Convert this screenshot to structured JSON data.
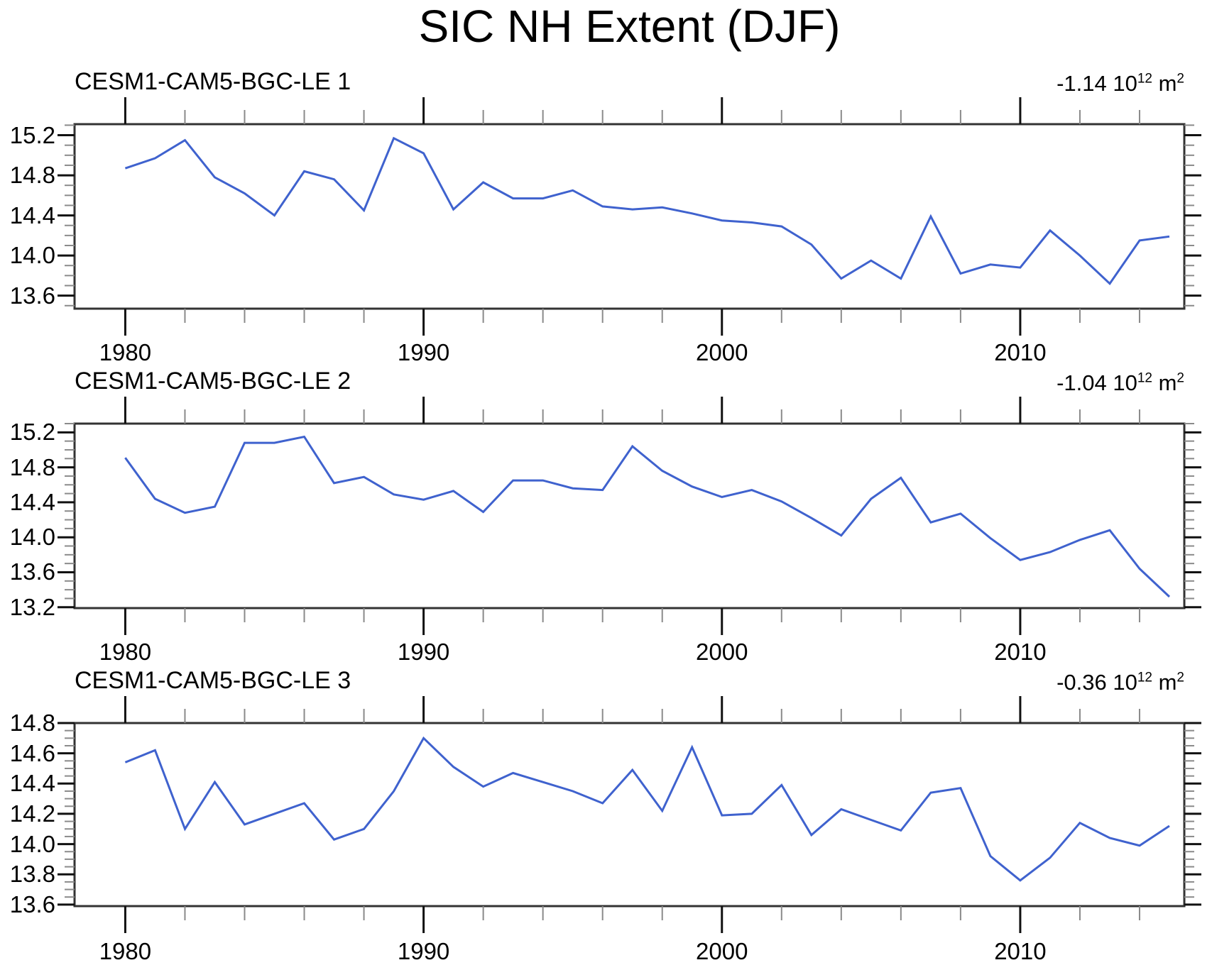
{
  "page": {
    "title": "SIC NH Extent (DJF)"
  },
  "colors": {
    "series_line": "#3F62CE",
    "axis_border": "#333333",
    "major_tick": "#111111",
    "minor_tick": "#8a8a8a",
    "text": "#000000"
  },
  "chart_data": [
    {
      "type": "line",
      "title": "CESM1-CAM5-BGC-LE 1",
      "annotation": {
        "base": "-1.14 10",
        "exp": "12",
        "unit": " m",
        "unit_exp": "2"
      },
      "x_start": 1980,
      "x_step": 1,
      "x": [
        1980,
        1981,
        1982,
        1983,
        1984,
        1985,
        1986,
        1987,
        1988,
        1989,
        1990,
        1991,
        1992,
        1993,
        1994,
        1995,
        1996,
        1997,
        1998,
        1999,
        2000,
        2001,
        2002,
        2003,
        2004,
        2005,
        2006,
        2007,
        2008,
        2009,
        2010,
        2011,
        2012,
        2013,
        2014,
        2015
      ],
      "values": [
        14.87,
        14.97,
        15.15,
        14.78,
        14.62,
        14.4,
        14.84,
        14.76,
        14.45,
        15.17,
        15.02,
        14.46,
        14.73,
        14.57,
        14.57,
        14.65,
        14.49,
        14.46,
        14.48,
        14.42,
        14.35,
        14.33,
        14.29,
        14.11,
        13.77,
        13.95,
        13.77,
        14.39,
        13.82,
        13.91,
        13.88,
        14.25,
        14.0,
        13.72,
        14.15,
        14.19
      ],
      "xlim": [
        1978.3,
        2015.5
      ],
      "ylim": [
        13.47,
        15.31
      ],
      "yticks": [
        15.2,
        14.8,
        14.4,
        14.0,
        13.6
      ],
      "ytick_labels": [
        "15.2",
        "14.8",
        "14.4",
        "14.0",
        "13.6"
      ],
      "y_minor_step": 0.1,
      "xticks": [
        1980,
        1990,
        2000,
        2010
      ],
      "xtick_labels": [
        "1980",
        "1990",
        "2000",
        "2010"
      ],
      "x_minor_step": 2,
      "grid": false,
      "legend": "none"
    },
    {
      "type": "line",
      "title": "CESM1-CAM5-BGC-LE 2",
      "annotation": {
        "base": "-1.04 10",
        "exp": "12",
        "unit": " m",
        "unit_exp": "2"
      },
      "x_start": 1980,
      "x_step": 1,
      "x": [
        1980,
        1981,
        1982,
        1983,
        1984,
        1985,
        1986,
        1987,
        1988,
        1989,
        1990,
        1991,
        1992,
        1993,
        1994,
        1995,
        1996,
        1997,
        1998,
        1999,
        2000,
        2001,
        2002,
        2003,
        2004,
        2005,
        2006,
        2007,
        2008,
        2009,
        2010,
        2011,
        2012,
        2013,
        2014,
        2015
      ],
      "values": [
        14.91,
        14.44,
        14.28,
        14.35,
        15.08,
        15.08,
        15.15,
        14.62,
        14.69,
        14.49,
        14.43,
        14.53,
        14.29,
        14.65,
        14.65,
        14.56,
        14.54,
        15.04,
        14.76,
        14.58,
        14.46,
        14.54,
        14.41,
        14.22,
        14.02,
        14.44,
        14.68,
        14.17,
        14.27,
        13.99,
        13.74,
        13.83,
        13.97,
        14.08,
        13.64,
        13.32
      ],
      "xlim": [
        1978.3,
        2015.5
      ],
      "ylim": [
        13.19,
        15.3
      ],
      "yticks": [
        15.2,
        14.8,
        14.4,
        14.0,
        13.6,
        13.2
      ],
      "ytick_labels": [
        "15.2",
        "14.8",
        "14.4",
        "14.0",
        "13.6",
        "13.2"
      ],
      "y_minor_step": 0.1,
      "xticks": [
        1980,
        1990,
        2000,
        2010
      ],
      "xtick_labels": [
        "1980",
        "1990",
        "2000",
        "2010"
      ],
      "x_minor_step": 2,
      "grid": false,
      "legend": "none"
    },
    {
      "type": "line",
      "title": "CESM1-CAM5-BGC-LE 3",
      "annotation": {
        "base": "-0.36 10",
        "exp": "12",
        "unit": " m",
        "unit_exp": "2"
      },
      "x_start": 1980,
      "x_step": 1,
      "x": [
        1980,
        1981,
        1982,
        1983,
        1984,
        1985,
        1986,
        1987,
        1988,
        1989,
        1990,
        1991,
        1992,
        1993,
        1994,
        1995,
        1996,
        1997,
        1998,
        1999,
        2000,
        2001,
        2002,
        2003,
        2004,
        2005,
        2006,
        2007,
        2008,
        2009,
        2010,
        2011,
        2012,
        2013,
        2014,
        2015
      ],
      "values": [
        14.54,
        14.62,
        14.1,
        14.41,
        14.13,
        14.2,
        14.27,
        14.03,
        14.1,
        14.35,
        14.7,
        14.51,
        14.38,
        14.47,
        14.41,
        14.35,
        14.27,
        14.49,
        14.22,
        14.64,
        14.19,
        14.2,
        14.39,
        14.06,
        14.23,
        14.16,
        14.09,
        14.34,
        14.37,
        13.92,
        13.76,
        13.91,
        14.14,
        14.04,
        13.99,
        14.12
      ],
      "xlim": [
        1978.3,
        2015.5
      ],
      "ylim": [
        13.59,
        14.8
      ],
      "yticks": [
        14.8,
        14.6,
        14.4,
        14.2,
        14.0,
        13.8,
        13.6
      ],
      "ytick_labels": [
        "14.8",
        "14.6",
        "14.4",
        "14.2",
        "14.0",
        "13.8",
        "13.6"
      ],
      "y_minor_step": 0.05,
      "xticks": [
        1980,
        1990,
        2000,
        2010
      ],
      "xtick_labels": [
        "1980",
        "1990",
        "2000",
        "2010"
      ],
      "x_minor_step": 2,
      "grid": false,
      "legend": "none"
    }
  ]
}
